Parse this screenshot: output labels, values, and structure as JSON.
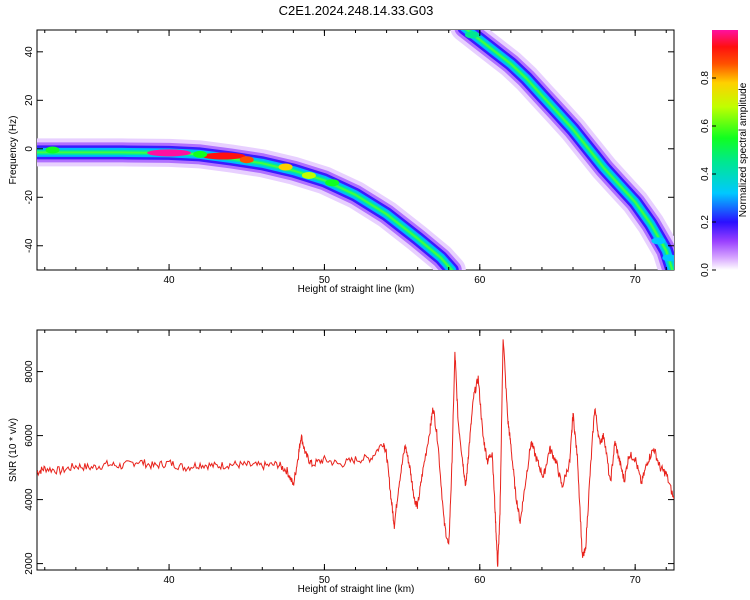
{
  "title": "C2E1.2024.248.14.33.G03",
  "charts": [
    {
      "type": "heatmap",
      "xlabel": "Height of straight line (km)",
      "ylabel": "Frequency (Hz)",
      "xlim": [
        31.5,
        72.5
      ],
      "ylim": [
        -50,
        49
      ],
      "xticks": [
        "40",
        "50",
        "60",
        "70"
      ],
      "yticks": [
        "40",
        "20",
        "0",
        "-20",
        "-40"
      ],
      "colorbar": {
        "label": "Normalized spectral amplitude",
        "ticks": [
          "0.0",
          "0.2",
          "0.4",
          "0.6",
          "0.8"
        ],
        "range": [
          0,
          1
        ]
      },
      "traces": [
        {
          "points": [
            [
              31.5,
              -1.5
            ],
            [
              34,
              -1.5
            ],
            [
              37,
              -1.5
            ],
            [
              40,
              -1.7
            ],
            [
              42,
              -2.3
            ],
            [
              44,
              -4
            ],
            [
              46,
              -6
            ],
            [
              48,
              -9
            ],
            [
              50,
              -13
            ],
            [
              52,
              -19
            ],
            [
              54,
              -27
            ],
            [
              56,
              -37
            ],
            [
              57.5,
              -45
            ],
            [
              58.2,
              -50
            ]
          ],
          "peaks": [
            [
              40,
              -1.7,
              1.0
            ],
            [
              32.5,
              -0.5,
              0.65
            ],
            [
              43.5,
              -3,
              0.95
            ],
            [
              45,
              -4.5,
              0.9
            ],
            [
              47.5,
              -7.5,
              0.85
            ],
            [
              42,
              -2.3,
              0.6
            ],
            [
              49,
              -11,
              0.7
            ],
            [
              50.5,
              -14,
              0.55
            ]
          ]
        },
        {
          "points": [
            [
              59,
              50
            ],
            [
              60,
              45
            ],
            [
              61,
              40
            ],
            [
              62,
              35
            ],
            [
              63,
              29
            ],
            [
              64,
              22
            ],
            [
              65,
              15
            ],
            [
              66,
              8
            ],
            [
              67,
              0
            ],
            [
              68,
              -8
            ],
            [
              69,
              -15
            ],
            [
              70,
              -22
            ],
            [
              71,
              -31
            ],
            [
              72,
              -42
            ],
            [
              72.4,
              -50
            ]
          ],
          "peaks": [
            [
              59.5,
              47,
              0.5
            ],
            [
              71.5,
              -38,
              0.4
            ],
            [
              72.2,
              -45,
              0.35
            ]
          ]
        }
      ]
    },
    {
      "type": "line",
      "xlabel": "Height of straight line (km)",
      "ylabel": "SNR (10 * v/v)",
      "xlim": [
        31.5,
        72.5
      ],
      "ylim": [
        1800,
        9300
      ],
      "xticks": [
        "40",
        "50",
        "60",
        "70"
      ],
      "yticks": [
        "8000",
        "6000",
        "4000",
        "2000"
      ],
      "color": "#e8221b",
      "series": [
        {
          "values": [
            [
              31.5,
              4850
            ],
            [
              32,
              4980
            ],
            [
              33,
              4900
            ],
            [
              34,
              5050
            ],
            [
              35,
              5000
            ],
            [
              36,
              5100
            ],
            [
              37,
              5050
            ],
            [
              38,
              5200
            ],
            [
              39,
              5050
            ],
            [
              40,
              5150
            ],
            [
              41,
              5000
            ],
            [
              42,
              5100
            ],
            [
              43,
              5050
            ],
            [
              44,
              5100
            ],
            [
              45,
              5080
            ],
            [
              46,
              5050
            ],
            [
              47,
              5100
            ],
            [
              47.6,
              4900
            ],
            [
              48,
              4450
            ],
            [
              48.3,
              5300
            ],
            [
              48.5,
              6000
            ],
            [
              48.8,
              5400
            ],
            [
              49.2,
              5100
            ],
            [
              50,
              5250
            ],
            [
              51,
              5100
            ],
            [
              52,
              5250
            ],
            [
              53,
              5300
            ],
            [
              53.8,
              5800
            ],
            [
              54,
              5400
            ],
            [
              54.3,
              4000
            ],
            [
              54.5,
              3200
            ],
            [
              54.8,
              4500
            ],
            [
              55.2,
              5700
            ],
            [
              55.5,
              5000
            ],
            [
              55.8,
              4000
            ],
            [
              56,
              3800
            ],
            [
              56.3,
              4800
            ],
            [
              56.8,
              6200
            ],
            [
              57,
              6900
            ],
            [
              57.3,
              5800
            ],
            [
              57.7,
              3300
            ],
            [
              58,
              2500
            ],
            [
              58.2,
              5000
            ],
            [
              58.4,
              8600
            ],
            [
              58.6,
              6500
            ],
            [
              58.9,
              5200
            ],
            [
              59.1,
              4400
            ],
            [
              59.3,
              5600
            ],
            [
              59.6,
              7200
            ],
            [
              59.9,
              7800
            ],
            [
              60.2,
              6000
            ],
            [
              60.5,
              5200
            ],
            [
              60.8,
              5500
            ],
            [
              61,
              3500
            ],
            [
              61.15,
              1900
            ],
            [
              61.3,
              3500
            ],
            [
              61.5,
              9100
            ],
            [
              61.8,
              6500
            ],
            [
              62,
              5700
            ],
            [
              62.3,
              4200
            ],
            [
              62.6,
              3300
            ],
            [
              62.9,
              4400
            ],
            [
              63.3,
              5800
            ],
            [
              63.7,
              5200
            ],
            [
              64.1,
              4700
            ],
            [
              64.5,
              5600
            ],
            [
              64.9,
              5200
            ],
            [
              65.3,
              4400
            ],
            [
              65.8,
              5200
            ],
            [
              66,
              6700
            ],
            [
              66.3,
              5200
            ],
            [
              66.6,
              2200
            ],
            [
              66.8,
              2400
            ],
            [
              67.1,
              4800
            ],
            [
              67.4,
              6900
            ],
            [
              67.7,
              5800
            ],
            [
              68,
              6000
            ],
            [
              68.4,
              4500
            ],
            [
              68.7,
              5800
            ],
            [
              69,
              5200
            ],
            [
              69.3,
              4600
            ],
            [
              69.6,
              5400
            ],
            [
              70,
              5300
            ],
            [
              70.4,
              4500
            ],
            [
              70.8,
              5200
            ],
            [
              71.2,
              5600
            ],
            [
              71.6,
              5000
            ],
            [
              72,
              4800
            ],
            [
              72.5,
              4000
            ]
          ]
        }
      ]
    }
  ]
}
